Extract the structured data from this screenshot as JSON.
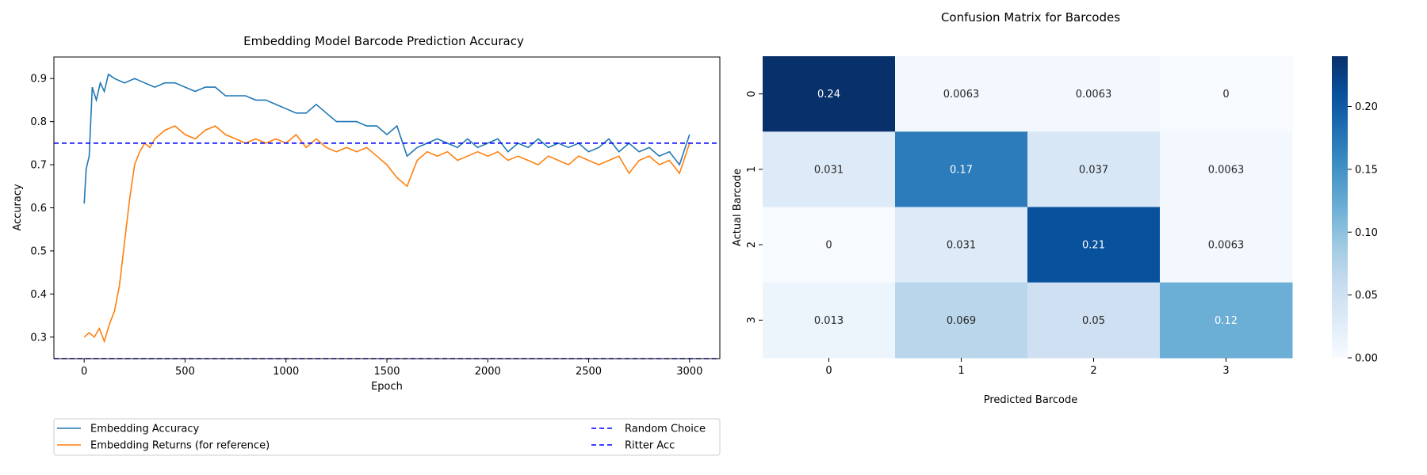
{
  "chart_data": [
    {
      "type": "line",
      "title": "Embedding Model Barcode Prediction Accuracy",
      "xlabel": "Epoch",
      "ylabel": "Accuracy",
      "xlim": [
        -150,
        3150
      ],
      "ylim": [
        0.25,
        0.95
      ],
      "x_ticks": [
        0,
        500,
        1000,
        1500,
        2000,
        2500,
        3000
      ],
      "y_ticks": [
        0.3,
        0.4,
        0.5,
        0.6,
        0.7,
        0.8,
        0.9
      ],
      "grid": false,
      "legend_placement": "below plot",
      "series": [
        {
          "name": "Embedding Accuracy",
          "color": "#1f77b4",
          "style": "solid",
          "points": [
            [
              0,
              0.61
            ],
            [
              10,
              0.69
            ],
            [
              25,
              0.72
            ],
            [
              40,
              0.88
            ],
            [
              60,
              0.85
            ],
            [
              80,
              0.89
            ],
            [
              100,
              0.87
            ],
            [
              120,
              0.91
            ],
            [
              150,
              0.9
            ],
            [
              200,
              0.89
            ],
            [
              250,
              0.9
            ],
            [
              300,
              0.89
            ],
            [
              350,
              0.88
            ],
            [
              400,
              0.89
            ],
            [
              450,
              0.89
            ],
            [
              500,
              0.88
            ],
            [
              550,
              0.87
            ],
            [
              600,
              0.88
            ],
            [
              650,
              0.88
            ],
            [
              700,
              0.86
            ],
            [
              750,
              0.86
            ],
            [
              800,
              0.86
            ],
            [
              850,
              0.85
            ],
            [
              900,
              0.85
            ],
            [
              950,
              0.84
            ],
            [
              1000,
              0.83
            ],
            [
              1050,
              0.82
            ],
            [
              1100,
              0.82
            ],
            [
              1150,
              0.84
            ],
            [
              1200,
              0.82
            ],
            [
              1250,
              0.8
            ],
            [
              1300,
              0.8
            ],
            [
              1350,
              0.8
            ],
            [
              1400,
              0.79
            ],
            [
              1450,
              0.79
            ],
            [
              1500,
              0.77
            ],
            [
              1550,
              0.79
            ],
            [
              1600,
              0.72
            ],
            [
              1650,
              0.74
            ],
            [
              1700,
              0.75
            ],
            [
              1750,
              0.76
            ],
            [
              1800,
              0.75
            ],
            [
              1850,
              0.74
            ],
            [
              1900,
              0.76
            ],
            [
              1950,
              0.74
            ],
            [
              2000,
              0.75
            ],
            [
              2050,
              0.76
            ],
            [
              2100,
              0.73
            ],
            [
              2150,
              0.75
            ],
            [
              2200,
              0.74
            ],
            [
              2250,
              0.76
            ],
            [
              2300,
              0.74
            ],
            [
              2350,
              0.75
            ],
            [
              2400,
              0.74
            ],
            [
              2450,
              0.75
            ],
            [
              2500,
              0.73
            ],
            [
              2550,
              0.74
            ],
            [
              2600,
              0.76
            ],
            [
              2650,
              0.73
            ],
            [
              2700,
              0.75
            ],
            [
              2750,
              0.73
            ],
            [
              2800,
              0.74
            ],
            [
              2850,
              0.72
            ],
            [
              2900,
              0.73
            ],
            [
              2950,
              0.7
            ],
            [
              3000,
              0.77
            ]
          ]
        },
        {
          "name": "Embedding Returns (for reference)",
          "color": "#ff7f0e",
          "style": "solid",
          "points": [
            [
              0,
              0.3
            ],
            [
              25,
              0.31
            ],
            [
              50,
              0.3
            ],
            [
              75,
              0.32
            ],
            [
              100,
              0.29
            ],
            [
              125,
              0.33
            ],
            [
              150,
              0.36
            ],
            [
              175,
              0.42
            ],
            [
              200,
              0.52
            ],
            [
              225,
              0.62
            ],
            [
              250,
              0.7
            ],
            [
              275,
              0.73
            ],
            [
              300,
              0.75
            ],
            [
              325,
              0.74
            ],
            [
              350,
              0.76
            ],
            [
              375,
              0.77
            ],
            [
              400,
              0.78
            ],
            [
              450,
              0.79
            ],
            [
              500,
              0.77
            ],
            [
              550,
              0.76
            ],
            [
              600,
              0.78
            ],
            [
              650,
              0.79
            ],
            [
              700,
              0.77
            ],
            [
              750,
              0.76
            ],
            [
              800,
              0.75
            ],
            [
              850,
              0.76
            ],
            [
              900,
              0.75
            ],
            [
              950,
              0.76
            ],
            [
              1000,
              0.75
            ],
            [
              1050,
              0.77
            ],
            [
              1100,
              0.74
            ],
            [
              1150,
              0.76
            ],
            [
              1200,
              0.74
            ],
            [
              1250,
              0.73
            ],
            [
              1300,
              0.74
            ],
            [
              1350,
              0.73
            ],
            [
              1400,
              0.74
            ],
            [
              1450,
              0.72
            ],
            [
              1500,
              0.7
            ],
            [
              1550,
              0.67
            ],
            [
              1600,
              0.65
            ],
            [
              1650,
              0.71
            ],
            [
              1700,
              0.73
            ],
            [
              1750,
              0.72
            ],
            [
              1800,
              0.73
            ],
            [
              1850,
              0.71
            ],
            [
              1900,
              0.72
            ],
            [
              1950,
              0.73
            ],
            [
              2000,
              0.72
            ],
            [
              2050,
              0.73
            ],
            [
              2100,
              0.71
            ],
            [
              2150,
              0.72
            ],
            [
              2200,
              0.71
            ],
            [
              2250,
              0.7
            ],
            [
              2300,
              0.72
            ],
            [
              2350,
              0.71
            ],
            [
              2400,
              0.7
            ],
            [
              2450,
              0.72
            ],
            [
              2500,
              0.71
            ],
            [
              2550,
              0.7
            ],
            [
              2600,
              0.71
            ],
            [
              2650,
              0.72
            ],
            [
              2700,
              0.68
            ],
            [
              2750,
              0.71
            ],
            [
              2800,
              0.72
            ],
            [
              2850,
              0.7
            ],
            [
              2900,
              0.71
            ],
            [
              2950,
              0.68
            ],
            [
              3000,
              0.75
            ]
          ]
        },
        {
          "name": "Random Choice",
          "color": "#0000ff",
          "style": "dashed",
          "constant": 0.25
        },
        {
          "name": "Ritter Acc",
          "color": "#0000ff",
          "style": "dashed",
          "constant": 0.75
        }
      ]
    },
    {
      "type": "heatmap",
      "title": "Confusion Matrix for Barcodes",
      "xlabel": "Predicted Barcode",
      "ylabel": "Actual Barcode",
      "x_categories": [
        "0",
        "1",
        "2",
        "3"
      ],
      "y_categories": [
        "0",
        "1",
        "2",
        "3"
      ],
      "values": [
        [
          0.24,
          0.0063,
          0.0063,
          0
        ],
        [
          0.031,
          0.17,
          0.037,
          0.0063
        ],
        [
          0,
          0.031,
          0.21,
          0.0063
        ],
        [
          0.013,
          0.069,
          0.05,
          0.12
        ]
      ],
      "cell_labels": [
        [
          "0.24",
          "0.0063",
          "0.0063",
          "0"
        ],
        [
          "0.031",
          "0.17",
          "0.037",
          "0.0063"
        ],
        [
          "0",
          "0.031",
          "0.21",
          "0.0063"
        ],
        [
          "0.013",
          "0.069",
          "0.05",
          "0.12"
        ]
      ],
      "colormap": "Blues",
      "color_range": [
        0,
        0.24
      ],
      "colorbar_ticks": [
        "0.00",
        "0.05",
        "0.10",
        "0.15",
        "0.20"
      ],
      "colorbar_tick_values": [
        0,
        0.05,
        0.1,
        0.15,
        0.2
      ]
    }
  ]
}
